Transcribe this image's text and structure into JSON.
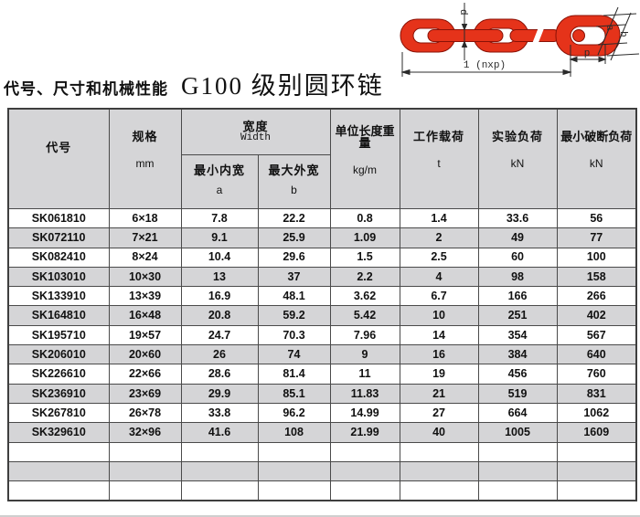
{
  "page": {
    "title_left": "代号、尺寸和机械性能",
    "title_right": "G100 级别圆环链"
  },
  "colors": {
    "chain_red": "#e5331a",
    "chain_outline": "#8a1106",
    "row_alt_gray": "#d5d5d7",
    "table_border": "#4a4a4a"
  },
  "diagram": {
    "labels": {
      "d": "d",
      "a": "a",
      "b": "b",
      "p": "p",
      "length": "1 (nxp)"
    }
  },
  "table": {
    "header": {
      "code": "代号",
      "spec": "规格",
      "spec_unit": "mm",
      "width_group": "宽度",
      "width_group_en": "Width",
      "min_inner": "最小内宽",
      "min_inner_sym": "a",
      "max_outer": "最大外宽",
      "max_outer_sym": "b",
      "unit_weight": "单位长度重量",
      "unit_weight_unit": "kg/m",
      "working_load": "工作载荷",
      "working_load_unit": "t",
      "test_load": "实验负荷",
      "test_load_unit": "kN",
      "breaking_load": "最小破断负荷",
      "breaking_load_unit": "kN"
    },
    "rows": [
      [
        "SK061810",
        "6×18",
        "7.8",
        "22.2",
        "0.8",
        "1.4",
        "33.6",
        "56"
      ],
      [
        "SK072110",
        "7×21",
        "9.1",
        "25.9",
        "1.09",
        "2",
        "49",
        "77"
      ],
      [
        "SK082410",
        "8×24",
        "10.4",
        "29.6",
        "1.5",
        "2.5",
        "60",
        "100"
      ],
      [
        "SK103010",
        "10×30",
        "13",
        "37",
        "2.2",
        "4",
        "98",
        "158"
      ],
      [
        "SK133910",
        "13×39",
        "16.9",
        "48.1",
        "3.62",
        "6.7",
        "166",
        "266"
      ],
      [
        "SK164810",
        "16×48",
        "20.8",
        "59.2",
        "5.42",
        "10",
        "251",
        "402"
      ],
      [
        "SK195710",
        "19×57",
        "24.7",
        "70.3",
        "7.96",
        "14",
        "354",
        "567"
      ],
      [
        "SK206010",
        "20×60",
        "26",
        "74",
        "9",
        "16",
        "384",
        "640"
      ],
      [
        "SK226610",
        "22×66",
        "28.6",
        "81.4",
        "11",
        "19",
        "456",
        "760"
      ],
      [
        "SK236910",
        "23×69",
        "29.9",
        "85.1",
        "11.83",
        "21",
        "519",
        "831"
      ],
      [
        "SK267810",
        "26×78",
        "33.8",
        "96.2",
        "14.99",
        "27",
        "664",
        "1062"
      ],
      [
        "SK329610",
        "32×96",
        "41.6",
        "108",
        "21.99",
        "40",
        "1005",
        "1609"
      ]
    ],
    "empty_rows": 3
  }
}
